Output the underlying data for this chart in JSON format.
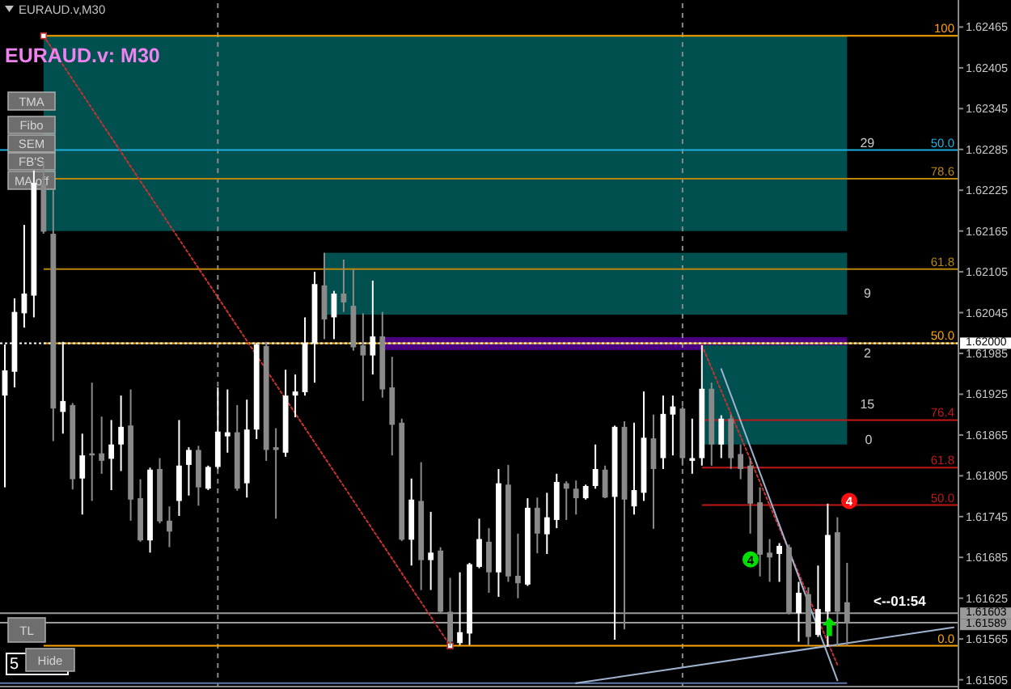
{
  "chart_data": {
    "type": "candlestick",
    "title": "EURAUD.v,M30",
    "subtitle": "EURAUD.v: M30",
    "categories": [
      null,
      null,
      null,
      null,
      null,
      null,
      null,
      null,
      null,
      null,
      null,
      null,
      null,
      null,
      null,
      null,
      null,
      null,
      null,
      null,
      null,
      null,
      null,
      null,
      null,
      null,
      null,
      null,
      null,
      null,
      null,
      null,
      null,
      null,
      null,
      null,
      null,
      null,
      null,
      null,
      null,
      null,
      null,
      null,
      null,
      null,
      null,
      null,
      null,
      null,
      null,
      null,
      null,
      null,
      null,
      null,
      null,
      null,
      null,
      null,
      null,
      null,
      null,
      null,
      null,
      null,
      null,
      null,
      null,
      null,
      null,
      null,
      null,
      null,
      null,
      null,
      null,
      null,
      null,
      null,
      null,
      null,
      null,
      null,
      null,
      null,
      null,
      null,
      null,
      null,
      null,
      null,
      null,
      null,
      null,
      null,
      null,
      null,
      null
    ],
    "ohlc": [
      [
        1.61923,
        1.61998,
        1.61788,
        1.6196
      ],
      [
        1.61958,
        1.62066,
        1.61935,
        1.62046
      ],
      [
        1.62044,
        1.62174,
        1.62023,
        1.62073
      ],
      [
        1.6207,
        1.62254,
        1.62038,
        1.62236
      ],
      [
        1.62234,
        1.62268,
        1.62161,
        1.62164
      ],
      [
        1.62161,
        1.62225,
        1.61856,
        1.61904
      ],
      [
        1.61899,
        1.62002,
        1.61867,
        1.61915
      ],
      [
        1.61909,
        1.61912,
        1.61785,
        1.618
      ],
      [
        1.61801,
        1.61867,
        1.61748,
        1.61835
      ],
      [
        1.61838,
        1.61942,
        1.61768,
        1.61835
      ],
      [
        1.61838,
        1.61892,
        1.61808,
        1.61827
      ],
      [
        1.6183,
        1.61887,
        1.61784,
        1.61851
      ],
      [
        1.61851,
        1.61923,
        1.61812,
        1.61877
      ],
      [
        1.61879,
        1.61932,
        1.61739,
        1.6177
      ],
      [
        1.61772,
        1.618,
        1.61708,
        1.6171
      ],
      [
        1.6171,
        1.61817,
        1.61692,
        1.61814
      ],
      [
        1.61815,
        1.61831,
        1.61735,
        1.61738
      ],
      [
        1.61739,
        1.6176,
        1.617,
        1.61723
      ],
      [
        1.61768,
        1.61887,
        1.61746,
        1.6182
      ],
      [
        1.61821,
        1.61847,
        1.61776,
        1.61843
      ],
      [
        1.61843,
        1.61849,
        1.61761,
        1.61788
      ],
      [
        1.61786,
        1.6182,
        1.61784,
        1.61818
      ],
      [
        1.61818,
        1.61935,
        1.61815,
        1.6187
      ],
      [
        1.61863,
        1.61932,
        1.61839,
        1.61869
      ],
      [
        1.61869,
        1.61909,
        1.61783,
        1.61786
      ],
      [
        1.61794,
        1.61917,
        1.61773,
        1.61873
      ],
      [
        1.61873,
        1.62,
        1.61859,
        1.61998
      ],
      [
        1.61996,
        1.62002,
        1.61827,
        1.61843
      ],
      [
        1.61847,
        1.61875,
        1.61742,
        1.61843
      ],
      [
        1.61839,
        1.61961,
        1.61833,
        1.61923
      ],
      [
        1.61923,
        1.61954,
        1.61891,
        1.61929
      ],
      [
        1.61928,
        1.62038,
        1.61923,
        1.62
      ],
      [
        1.62,
        1.62105,
        1.61942,
        1.62087
      ],
      [
        1.62085,
        1.62133,
        1.62006,
        1.62035
      ],
      [
        1.62038,
        1.62077,
        1.62006,
        1.62073
      ],
      [
        1.62073,
        1.62123,
        1.62046,
        1.6206
      ],
      [
        1.62055,
        1.62109,
        1.61989,
        1.61994
      ],
      [
        1.61997,
        1.62044,
        1.61915,
        1.61982
      ],
      [
        1.61982,
        1.62092,
        1.61954,
        1.6201
      ],
      [
        1.6201,
        1.62046,
        1.6192,
        1.61932
      ],
      [
        1.61935,
        1.6198,
        1.61835,
        1.6188
      ],
      [
        1.61883,
        1.61889,
        1.61709,
        1.61711
      ],
      [
        1.61711,
        1.61801,
        1.61673,
        1.6177
      ],
      [
        1.61768,
        1.61825,
        1.61637,
        1.61681
      ],
      [
        1.61681,
        1.61752,
        1.61637,
        1.61692
      ],
      [
        1.61695,
        1.617,
        1.61603,
        1.61605
      ],
      [
        1.61605,
        1.61655,
        1.61555,
        1.61561
      ],
      [
        1.61559,
        1.61663,
        1.61556,
        1.61575
      ],
      [
        1.61573,
        1.61677,
        1.61556,
        1.61675
      ],
      [
        1.61671,
        1.61742,
        1.61669,
        1.61712
      ],
      [
        1.61708,
        1.61728,
        1.61633,
        1.61663
      ],
      [
        1.61663,
        1.61815,
        1.61627,
        1.61794
      ],
      [
        1.61792,
        1.61821,
        1.61649,
        1.61657
      ],
      [
        1.61658,
        1.6172,
        1.61625,
        1.61647
      ],
      [
        1.61645,
        1.61772,
        1.61643,
        1.61758
      ],
      [
        1.61758,
        1.61773,
        1.61691,
        1.6172
      ],
      [
        1.61719,
        1.6178,
        1.6169,
        1.61744
      ],
      [
        1.6174,
        1.61808,
        1.61728,
        1.61796
      ],
      [
        1.61794,
        1.61797,
        1.6174,
        1.61786
      ],
      [
        1.61786,
        1.61798,
        1.61748,
        1.61772
      ],
      [
        1.61772,
        1.61792,
        1.6177,
        1.6179
      ],
      [
        1.6179,
        1.61851,
        1.61786,
        1.61815
      ],
      [
        1.61814,
        1.6182,
        1.61772,
        1.61773
      ],
      [
        1.61774,
        1.61879,
        1.61564,
        1.61877
      ],
      [
        1.61877,
        1.61885,
        1.61579,
        1.6177
      ],
      [
        1.6176,
        1.61883,
        1.61748,
        1.61784
      ],
      [
        1.6178,
        1.61929,
        1.61768,
        1.61861
      ],
      [
        1.6186,
        1.61895,
        1.61727,
        1.61815
      ],
      [
        1.61831,
        1.61923,
        1.61815,
        1.61896
      ],
      [
        1.61895,
        1.61923,
        1.61835,
        1.61907
      ],
      [
        1.61904,
        1.61907,
        1.6182,
        1.61831
      ],
      [
        1.61827,
        1.61889,
        1.61808,
        1.61831
      ],
      [
        1.61831,
        1.61997,
        1.6182,
        1.61933
      ],
      [
        1.61933,
        1.61942,
        1.6182,
        1.61851
      ],
      [
        1.61851,
        1.61894,
        1.61831,
        1.61889
      ],
      [
        1.61889,
        1.61895,
        1.61815,
        1.61831
      ],
      [
        1.61837,
        1.61851,
        1.618,
        1.61815
      ],
      [
        1.6182,
        1.61831,
        1.6172,
        1.61764
      ],
      [
        1.61766,
        1.61788,
        1.61657,
        1.61689
      ],
      [
        1.61692,
        1.61712,
        1.61649,
        1.61685
      ],
      [
        1.6169,
        1.61706,
        1.61649,
        1.61702
      ],
      [
        1.617,
        1.61704,
        1.61601,
        1.61603
      ],
      [
        1.61603,
        1.61649,
        1.61561,
        1.61633
      ],
      [
        1.61631,
        1.61641,
        1.61555,
        1.61568
      ],
      [
        1.61571,
        1.61673,
        1.61568,
        1.61609
      ],
      [
        1.61605,
        1.61764,
        1.61554,
        1.61718
      ],
      [
        1.61722,
        1.61744,
        1.61554,
        1.61605
      ],
      [
        1.61619,
        1.61677,
        1.61555,
        1.61589
      ],
      null,
      null,
      null,
      null,
      null,
      null,
      null,
      null,
      null,
      null,
      null
    ],
    "colors": [
      "#ffffff",
      "#ffffff",
      "#ffffff",
      "#ffffff",
      "#8a8a8a",
      "#8a8a8a",
      "#ffffff",
      "#8a8a8a",
      "#ffffff",
      "#8a8a8a",
      "#8a8a8a",
      "#ffffff",
      "#ffffff",
      "#8a8a8a",
      "#8a8a8a",
      "#ffffff",
      "#8a8a8a",
      "#8a8a8a",
      "#ffffff",
      "#ffffff",
      "#8a8a8a",
      "#ffffff",
      "#ffffff",
      "#ffffff",
      "#8a8a8a",
      "#ffffff",
      "#ffffff",
      "#8a8a8a",
      "#8a8a8a",
      "#ffffff",
      "#ffffff",
      "#ffffff",
      "#ffffff",
      "#8a8a8a",
      "#ffffff",
      "#8a8a8a",
      "#8a8a8a",
      "#8a8a8a",
      "#ffffff",
      "#8a8a8a",
      "#8a8a8a",
      "#8a8a8a",
      "#ffffff",
      "#8a8a8a",
      "#ffffff",
      "#8a8a8a",
      "#8a8a8a",
      "#ffffff",
      "#ffffff",
      "#ffffff",
      "#8a8a8a",
      "#ffffff",
      "#8a8a8a",
      "#8a8a8a",
      "#ffffff",
      "#8a8a8a",
      "#ffffff",
      "#ffffff",
      "#8a8a8a",
      "#8a8a8a",
      "#ffffff",
      "#ffffff",
      "#8a8a8a",
      "#ffffff",
      "#8a8a8a",
      "#ffffff",
      "#ffffff",
      "#8a8a8a",
      "#ffffff",
      "#ffffff",
      "#8a8a8a",
      "#ffffff",
      "#ffffff",
      "#8a8a8a",
      "#ffffff",
      "#8a8a8a",
      "#8a8a8a",
      "#8a8a8a",
      "#8a8a8a",
      "#8a8a8a",
      "#ffffff",
      "#8a8a8a",
      "#ffffff",
      "#8a8a8a",
      "#ffffff",
      "#ffffff",
      "#8a8a8a",
      "#8a8a8a",
      null,
      null,
      null,
      null,
      null,
      null,
      null,
      null,
      null,
      null,
      null
    ],
    "ylim": [
      1.61495,
      1.625
    ],
    "yticks": [
      1.62465,
      1.62405,
      1.62345,
      1.62285,
      1.62225,
      1.62165,
      1.62105,
      1.62045,
      {
        "value": 1.62,
        "label": "1.62000"
      },
      1.61985,
      1.61925,
      1.61865,
      1.61805,
      1.61745,
      1.61685,
      1.61625,
      {
        "value": 1.61603,
        "label": "1.61603"
      },
      {
        "value": 1.61589,
        "label": "1.61589"
      },
      1.61565,
      1.61505
    ],
    "tick_labels": "y",
    "ref_lines": [
      {
        "axis": "y",
        "value": 1.62452,
        "color": "#ffa500"
      },
      {
        "axis": "y",
        "value": 1.62284,
        "color": "#1eaee0"
      },
      {
        "axis": "y",
        "value": 1.62242,
        "color": "#b8860b"
      },
      {
        "axis": "y",
        "value": 1.62109,
        "color": "#b8860b"
      },
      {
        "axis": "y",
        "value": 1.62,
        "color": "#ffa500"
      },
      {
        "axis": "y",
        "value": 1.61555,
        "color": "#ffa500"
      },
      {
        "axis": "y",
        "value": 1.61887,
        "color": "#c01818"
      },
      {
        "axis": "y",
        "value": 1.61817,
        "color": "#c01818"
      },
      {
        "axis": "y",
        "value": 1.61762,
        "color": "#c01818"
      },
      {
        "axis": "y",
        "value": 1.62,
        "color": "#ffffff",
        "line_style": "dotted"
      },
      {
        "axis": "y",
        "value": 1.61603,
        "color": "#9a9a9a"
      },
      {
        "axis": "y",
        "value": 1.61589,
        "color": "#9a9a9a"
      },
      {
        "axis": "y",
        "value": 1.615,
        "color": "#6078a8"
      }
    ],
    "bands": [
      {
        "axis": "y",
        "from": 1.62165,
        "to": 1.62452,
        "label": "29",
        "color": "#005050"
      },
      {
        "axis": "y",
        "from": 1.62042,
        "to": 1.62133,
        "label": "9",
        "color": "#005050"
      },
      {
        "axis": "y",
        "from": 1.6199,
        "to": 1.62009,
        "label": "2",
        "color": "#4b0082"
      },
      {
        "axis": "y",
        "from": 1.61851,
        "to": 1.61997,
        "label": "15",
        "color": "#005050"
      }
    ],
    "series": [
      {
        "type": "line",
        "values": [
          null,
          null,
          null,
          null,
          1.62452,
          null,
          null,
          null,
          null,
          null,
          null,
          null,
          null,
          null,
          null,
          null,
          null,
          null,
          null,
          null,
          null,
          null,
          null,
          null,
          null,
          null,
          null,
          null,
          null,
          null,
          null,
          null,
          null,
          null,
          null,
          null,
          null,
          null,
          null,
          null,
          null,
          null,
          null,
          null,
          null,
          null,
          1.61555,
          null,
          null,
          null,
          null,
          null,
          null,
          null,
          null,
          null,
          null,
          null,
          null,
          null,
          null,
          null,
          null,
          null,
          null,
          null,
          null,
          null,
          null,
          null,
          null,
          null,
          null,
          null,
          null,
          null,
          null,
          null,
          null,
          null,
          null,
          null,
          null,
          null,
          null,
          null,
          null,
          null,
          null,
          null,
          null,
          null,
          null,
          null,
          null,
          null,
          null,
          null,
          null
        ],
        "color": "#c83232",
        "line_style": "dotted",
        "marker": "square"
      },
      {
        "type": "line",
        "values": [
          null,
          null,
          null,
          null,
          null,
          null,
          null,
          null,
          null,
          null,
          null,
          null,
          null,
          null,
          null,
          null,
          null,
          null,
          null,
          null,
          null,
          null,
          null,
          null,
          null,
          null,
          null,
          null,
          null,
          null,
          null,
          null,
          null,
          null,
          null,
          null,
          null,
          null,
          null,
          null,
          null,
          null,
          null,
          null,
          null,
          null,
          null,
          null,
          null,
          null,
          null,
          null,
          null,
          null,
          null,
          null,
          null,
          null,
          null,
          null,
          null,
          null,
          null,
          null,
          null,
          null,
          null,
          null,
          null,
          null,
          null,
          null,
          1.61997,
          null,
          null,
          null,
          null,
          null,
          null,
          null,
          null,
          null,
          null,
          null,
          null,
          null,
          1.61527,
          null,
          null,
          null,
          null,
          null,
          null,
          null,
          null,
          null,
          null,
          null,
          null
        ],
        "color": "#c83232",
        "line_style": "dotted"
      },
      {
        "type": "line",
        "values": [
          null,
          null,
          null,
          null,
          null,
          null,
          null,
          null,
          null,
          null,
          null,
          null,
          null,
          null,
          null,
          null,
          null,
          null,
          null,
          null,
          null,
          null,
          null,
          null,
          null,
          null,
          null,
          null,
          null,
          null,
          null,
          null,
          null,
          null,
          null,
          null,
          null,
          null,
          null,
          null,
          null,
          null,
          null,
          null,
          null,
          null,
          null,
          null,
          null,
          null,
          null,
          null,
          null,
          null,
          null,
          null,
          null,
          null,
          null,
          null,
          null,
          null,
          null,
          null,
          null,
          null,
          null,
          null,
          null,
          null,
          null,
          null,
          null,
          null,
          1.61962,
          null,
          null,
          null,
          null,
          null,
          null,
          null,
          null,
          null,
          null,
          null,
          1.61504,
          null,
          null,
          null,
          null,
          null,
          null,
          null,
          null,
          null,
          null,
          null,
          null
        ],
        "color": "#9fb3cf"
      },
      {
        "type": "line",
        "values": [
          null,
          null,
          null,
          null,
          null,
          null,
          null,
          null,
          null,
          null,
          null,
          null,
          null,
          null,
          null,
          null,
          null,
          null,
          null,
          null,
          null,
          null,
          null,
          null,
          null,
          null,
          null,
          null,
          null,
          null,
          null,
          null,
          null,
          null,
          null,
          null,
          null,
          null,
          null,
          null,
          null,
          null,
          null,
          null,
          null,
          null,
          null,
          null,
          null,
          null,
          null,
          null,
          null,
          null,
          null,
          null,
          null,
          null,
          null,
          1.615,
          null,
          null,
          null,
          null,
          null,
          null,
          null,
          null,
          null,
          null,
          null,
          null,
          null,
          null,
          null,
          null,
          null,
          null,
          null,
          null,
          null,
          null,
          null,
          null,
          null,
          null,
          null,
          null,
          null,
          null,
          null,
          null,
          null,
          null,
          null,
          null,
          null,
          null,
          1.61582
        ],
        "color": "#9fb3cf"
      }
    ],
    "annotations": [
      "TMA",
      "Fibo",
      "SEM",
      "FB'S",
      "MA off",
      "TL",
      "5",
      "Hide",
      "<--01:54",
      "0",
      {
        "text": "4",
        "y": 1.61682
      },
      {
        "text": "4",
        "y": 1.61768
      },
      {
        "text": "100",
        "y": 1.62452
      },
      {
        "text": "50.0",
        "y": 1.62284
      },
      {
        "text": "78.6",
        "y": 1.62242
      },
      {
        "text": "61.8",
        "y": 1.62109
      },
      {
        "text": "50.0",
        "y": 1.62
      },
      {
        "text": "0.0",
        "y": 1.61555
      },
      {
        "text": "76.4",
        "y": 1.61887
      },
      {
        "text": "61.8",
        "y": 1.61817
      },
      {
        "text": "50.0",
        "y": 1.61762
      }
    ]
  }
}
